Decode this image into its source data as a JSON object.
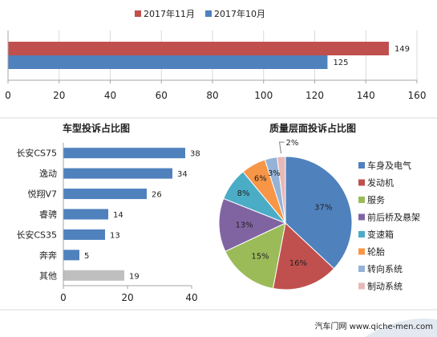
{
  "chart_data": [
    {
      "type": "bar",
      "orientation": "horizontal",
      "legend_position": "top",
      "series": [
        {
          "name": "2017年11月",
          "color": "#C0504D",
          "values": [
            149
          ]
        },
        {
          "name": "2017年10月",
          "color": "#4F81BD",
          "values": [
            125
          ]
        }
      ],
      "xlim": [
        0,
        160
      ],
      "xticks": [
        0,
        20,
        40,
        60,
        80,
        100,
        120,
        140,
        160
      ],
      "grid": true
    },
    {
      "type": "bar",
      "orientation": "horizontal",
      "title": "车型投诉占比图",
      "categories": [
        "长安CS75",
        "逸动",
        "悦翔V7",
        "睿骋",
        "长安CS35",
        "奔奔",
        "其他"
      ],
      "values": [
        38,
        34,
        26,
        14,
        13,
        5,
        19
      ],
      "colors": [
        "#4F81BD",
        "#4F81BD",
        "#4F81BD",
        "#4F81BD",
        "#4F81BD",
        "#4F81BD",
        "#BFBFBF"
      ],
      "xlim": [
        0,
        40
      ],
      "xticks": [
        0,
        20,
        40
      ],
      "grid": false
    },
    {
      "type": "pie",
      "title": "质量层面投诉占比图",
      "legend_position": "right",
      "labels": [
        "车身及电气",
        "发动机",
        "服务",
        "前后桥及悬架",
        "变速箱",
        "轮胎",
        "转向系统",
        "制动系统"
      ],
      "values": [
        37,
        16,
        15,
        13,
        8,
        6,
        3,
        2
      ],
      "value_labels": [
        "37%",
        "16%",
        "15%",
        "13%",
        "8%",
        "6%",
        "3%",
        "2%"
      ],
      "colors": [
        "#4F81BD",
        "#C0504D",
        "#9BBB59",
        "#8064A2",
        "#4BACC6",
        "#F79646",
        "#95B3D7",
        "#E6B9B8"
      ]
    }
  ],
  "footer": {
    "source": "汽车门网 www.qiche-men.com"
  }
}
